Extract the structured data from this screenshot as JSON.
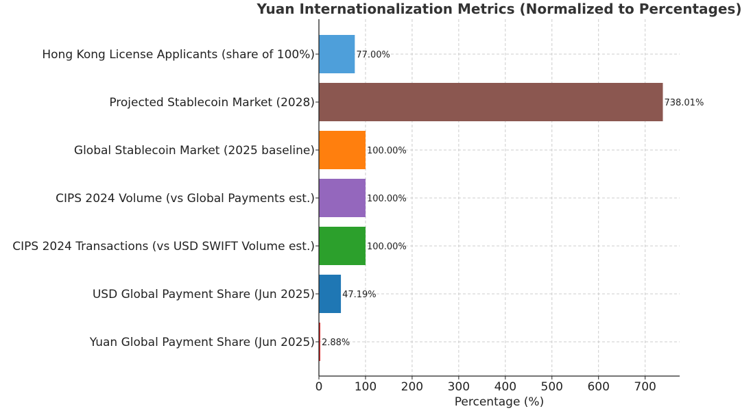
{
  "chart_data": {
    "type": "bar",
    "orientation": "horizontal",
    "title": "Yuan Internationalization Metrics (Normalized to Percentages)",
    "xlabel": "Percentage (%)",
    "ylabel": "",
    "xlim": [
      0,
      775
    ],
    "xticks": [
      0,
      100,
      200,
      300,
      400,
      500,
      600,
      700
    ],
    "grid": true,
    "bars": [
      {
        "category": "Hong Kong License Applicants (share of 100%)",
        "value": 77.0,
        "label": "77.00%",
        "color": "#4e9fda"
      },
      {
        "category": "Projected Stablecoin Market (2028)",
        "value": 738.01,
        "label": "738.01%",
        "color": "#8b5750"
      },
      {
        "category": "Global Stablecoin Market (2025 baseline)",
        "value": 100.0,
        "label": "100.00%",
        "color": "#ff7f0e"
      },
      {
        "category": "CIPS 2024 Volume (vs Global Payments est.)",
        "value": 100.0,
        "label": "100.00%",
        "color": "#9467bd"
      },
      {
        "category": "CIPS 2024 Transactions (vs USD SWIFT Volume est.)",
        "value": 100.0,
        "label": "100.00%",
        "color": "#2ca02c"
      },
      {
        "category": "USD Global Payment Share (Jun 2025)",
        "value": 47.19,
        "label": "47.19%",
        "color": "#1f77b4"
      },
      {
        "category": "Yuan Global Payment Share (Jun 2025)",
        "value": 2.88,
        "label": "2.88%",
        "color": "#d62728"
      }
    ]
  }
}
